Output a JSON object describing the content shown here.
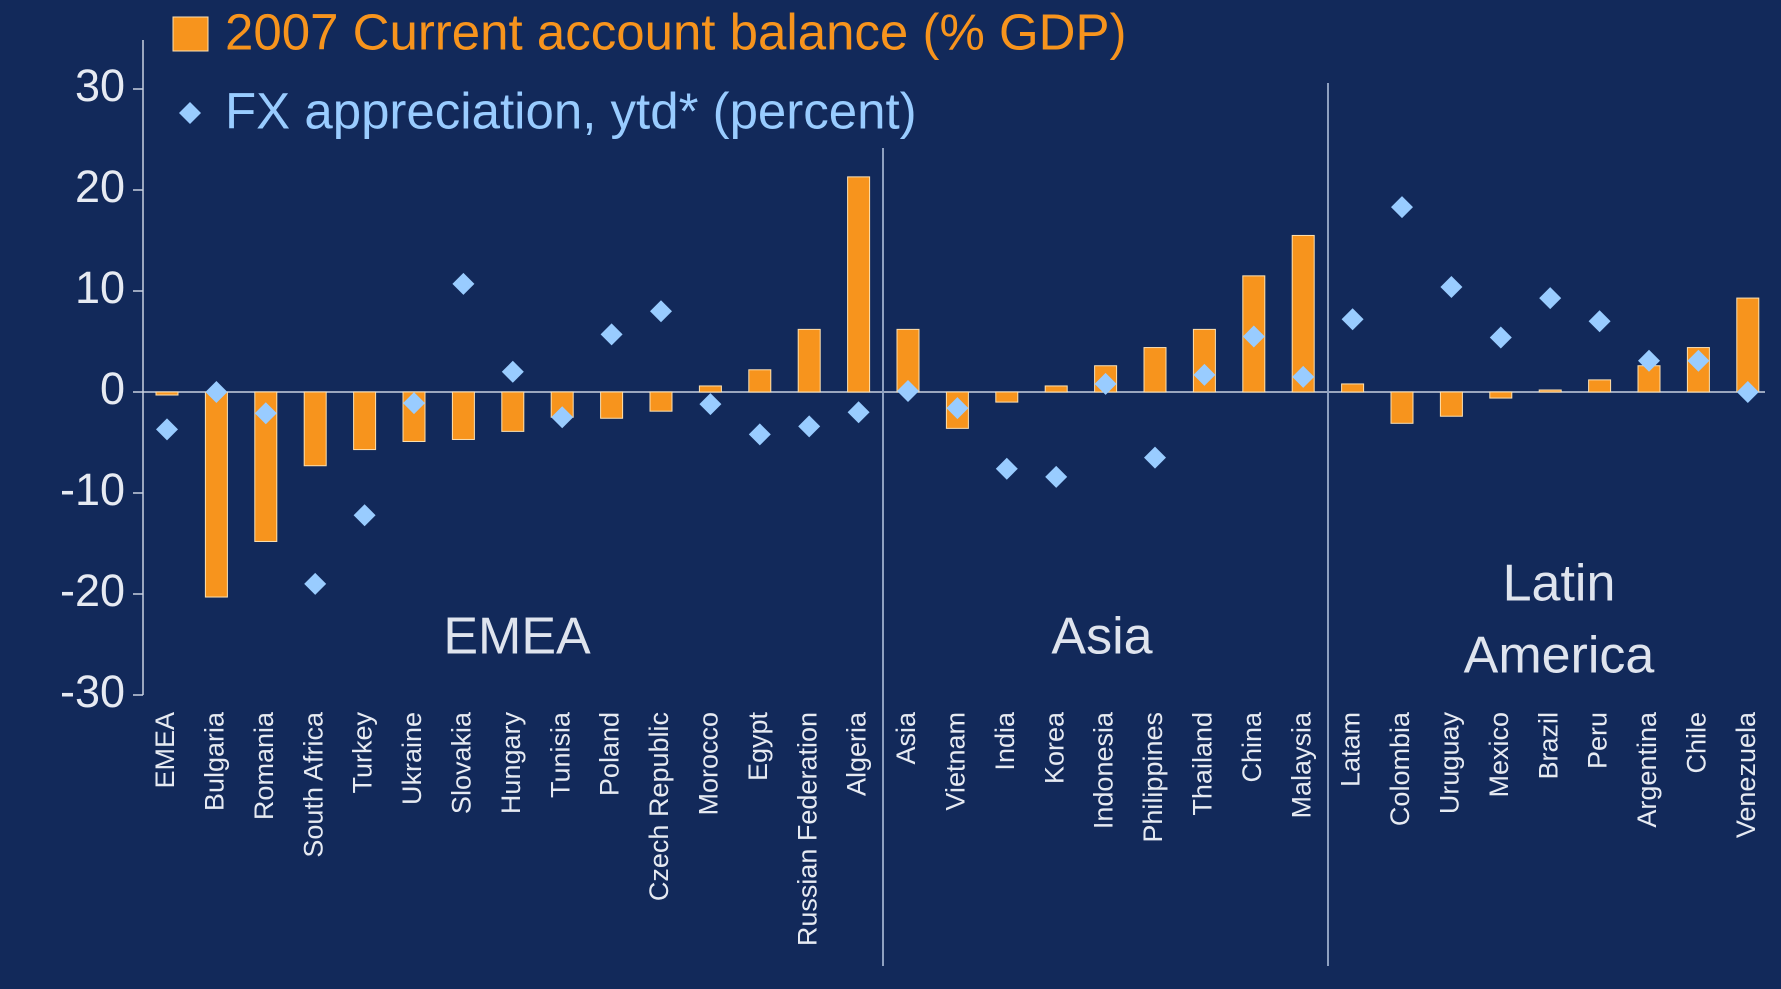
{
  "chart_data": {
    "type": "bar+scatter",
    "categories": [
      "EMEA",
      "Bulgaria",
      "Romania",
      "South Africa",
      "Turkey",
      "Ukraine",
      "Slovakia",
      "Hungary",
      "Tunisia",
      "Poland",
      "Czech Republic",
      "Morocco",
      "Egypt",
      "Russian Federation",
      "Algeria",
      "Asia",
      "Vietnam",
      "India",
      "Korea",
      "Indonesia",
      "Philippines",
      "Thailand",
      "China",
      "Malaysia",
      "Latam",
      "Colombia",
      "Uruguay",
      "Mexico",
      "Brazil",
      "Peru",
      "Argentina",
      "Chile",
      "Venezuela"
    ],
    "series": [
      {
        "name": "2007 Current account balance (% GDP)",
        "type": "bar",
        "color": "#f7941d",
        "values": [
          -0.3,
          -20.3,
          -14.8,
          -7.3,
          -5.7,
          -4.9,
          -4.7,
          -3.9,
          -2.5,
          -2.6,
          -1.9,
          0.6,
          2.2,
          6.2,
          21.3,
          6.2,
          -3.6,
          -1.0,
          0.6,
          2.6,
          4.4,
          6.2,
          11.5,
          15.5,
          0.8,
          -3.1,
          -2.4,
          -0.6,
          0.2,
          1.2,
          2.6,
          4.4,
          9.3
        ]
      },
      {
        "name": "FX appreciation, ytd* (percent)",
        "type": "scatter",
        "color": "#99ccff",
        "values": [
          -3.7,
          0,
          -2.1,
          -19,
          -12.2,
          -1.1,
          10.7,
          2.0,
          -2.5,
          5.7,
          8.0,
          -1.2,
          -4.2,
          -3.4,
          -2.0,
          0.1,
          -1.6,
          -7.6,
          -8.4,
          0.8,
          -6.5,
          1.7,
          5.5,
          1.5,
          7.2,
          18.3,
          10.4,
          5.4,
          9.3,
          7.0,
          3.1,
          3.1,
          0
        ]
      }
    ],
    "groups": [
      {
        "label": [
          "EMEA"
        ]
      },
      {
        "label": [
          "Asia"
        ]
      },
      {
        "label": [
          "Latin",
          "America"
        ]
      }
    ],
    "ylim": [
      -30,
      30
    ],
    "yticks": [
      -30,
      -20,
      -10,
      0,
      10,
      20,
      30
    ]
  }
}
